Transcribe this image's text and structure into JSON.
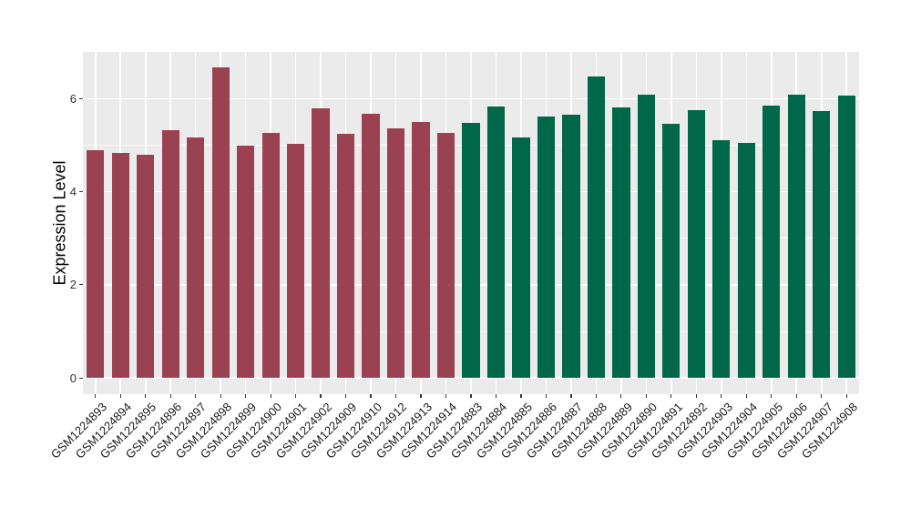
{
  "chart_data": {
    "type": "bar",
    "title": "",
    "xlabel": "",
    "ylabel": "Expression Level",
    "ylim": [
      0,
      7.0
    ],
    "yticks": [
      0,
      2,
      4,
      6
    ],
    "yticks_minor": [
      1,
      3,
      5
    ],
    "grid": true,
    "legend": false,
    "panel_bg": "#EBEBEB",
    "grid_color": "#FFFFFF",
    "categories": [
      "GSM1224893",
      "GSM1224894",
      "GSM1224895",
      "GSM1224896",
      "GSM1224897",
      "GSM1224898",
      "GSM1224899",
      "GSM1224900",
      "GSM1224901",
      "GSM1224902",
      "GSM1224909",
      "GSM1224910",
      "GSM1224912",
      "GSM1224913",
      "GSM1224914",
      "GSM1224883",
      "GSM1224884",
      "GSM1224885",
      "GSM1224886",
      "GSM1224887",
      "GSM1224888",
      "GSM1224889",
      "GSM1224890",
      "GSM1224891",
      "GSM1224892",
      "GSM1224903",
      "GSM1224904",
      "GSM1224905",
      "GSM1224906",
      "GSM1224907",
      "GSM1224908"
    ],
    "values": [
      4.89,
      4.84,
      4.8,
      5.32,
      5.17,
      6.67,
      4.98,
      5.27,
      5.02,
      5.79,
      5.24,
      5.67,
      5.36,
      5.5,
      5.27,
      5.48,
      5.83,
      5.17,
      5.62,
      5.66,
      6.48,
      5.81,
      6.09,
      5.45,
      5.76,
      5.11,
      5.05,
      5.85,
      6.09,
      5.74,
      6.07
    ],
    "bar_groups": [
      "maroon",
      "maroon",
      "maroon",
      "maroon",
      "maroon",
      "maroon",
      "maroon",
      "maroon",
      "maroon",
      "maroon",
      "maroon",
      "maroon",
      "maroon",
      "maroon",
      "maroon",
      "green",
      "green",
      "green",
      "green",
      "green",
      "green",
      "green",
      "green",
      "green",
      "green",
      "green",
      "green",
      "green",
      "green",
      "green",
      "green"
    ],
    "group_colors": {
      "maroon": "#9A4252",
      "green": "#006848"
    }
  }
}
